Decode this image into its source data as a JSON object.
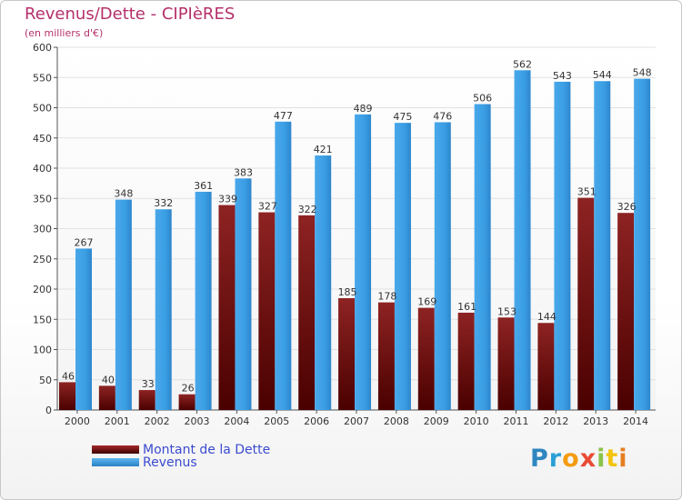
{
  "chart_data": {
    "type": "bar",
    "title": "Revenus/Dette - CIPIèRES",
    "subtitle": "(en milliers d'€)",
    "categories": [
      "2000",
      "2001",
      "2002",
      "2003",
      "2004",
      "2005",
      "2006",
      "2007",
      "2008",
      "2009",
      "2010",
      "2011",
      "2012",
      "2013",
      "2014"
    ],
    "series": [
      {
        "name": "Montant de la Dette",
        "color": "#8b1a1a",
        "values": [
          46,
          40,
          33,
          26,
          339,
          327,
          322,
          185,
          178,
          169,
          161,
          153,
          144,
          351,
          326
        ]
      },
      {
        "name": "Revenus",
        "color": "#3a9ee4",
        "values": [
          267,
          348,
          332,
          361,
          383,
          477,
          421,
          489,
          475,
          476,
          506,
          562,
          543,
          544,
          548
        ]
      }
    ],
    "yticks": [
      "0",
      "50",
      "100",
      "150",
      "200",
      "250",
      "300",
      "350",
      "400",
      "450",
      "500",
      "550",
      "600"
    ],
    "ylim": [
      0,
      600
    ],
    "grid": true,
    "legend_position": "bottom-left"
  },
  "logo": {
    "letters": [
      "P",
      "r",
      "o",
      "x",
      "i",
      "t",
      "i"
    ]
  }
}
